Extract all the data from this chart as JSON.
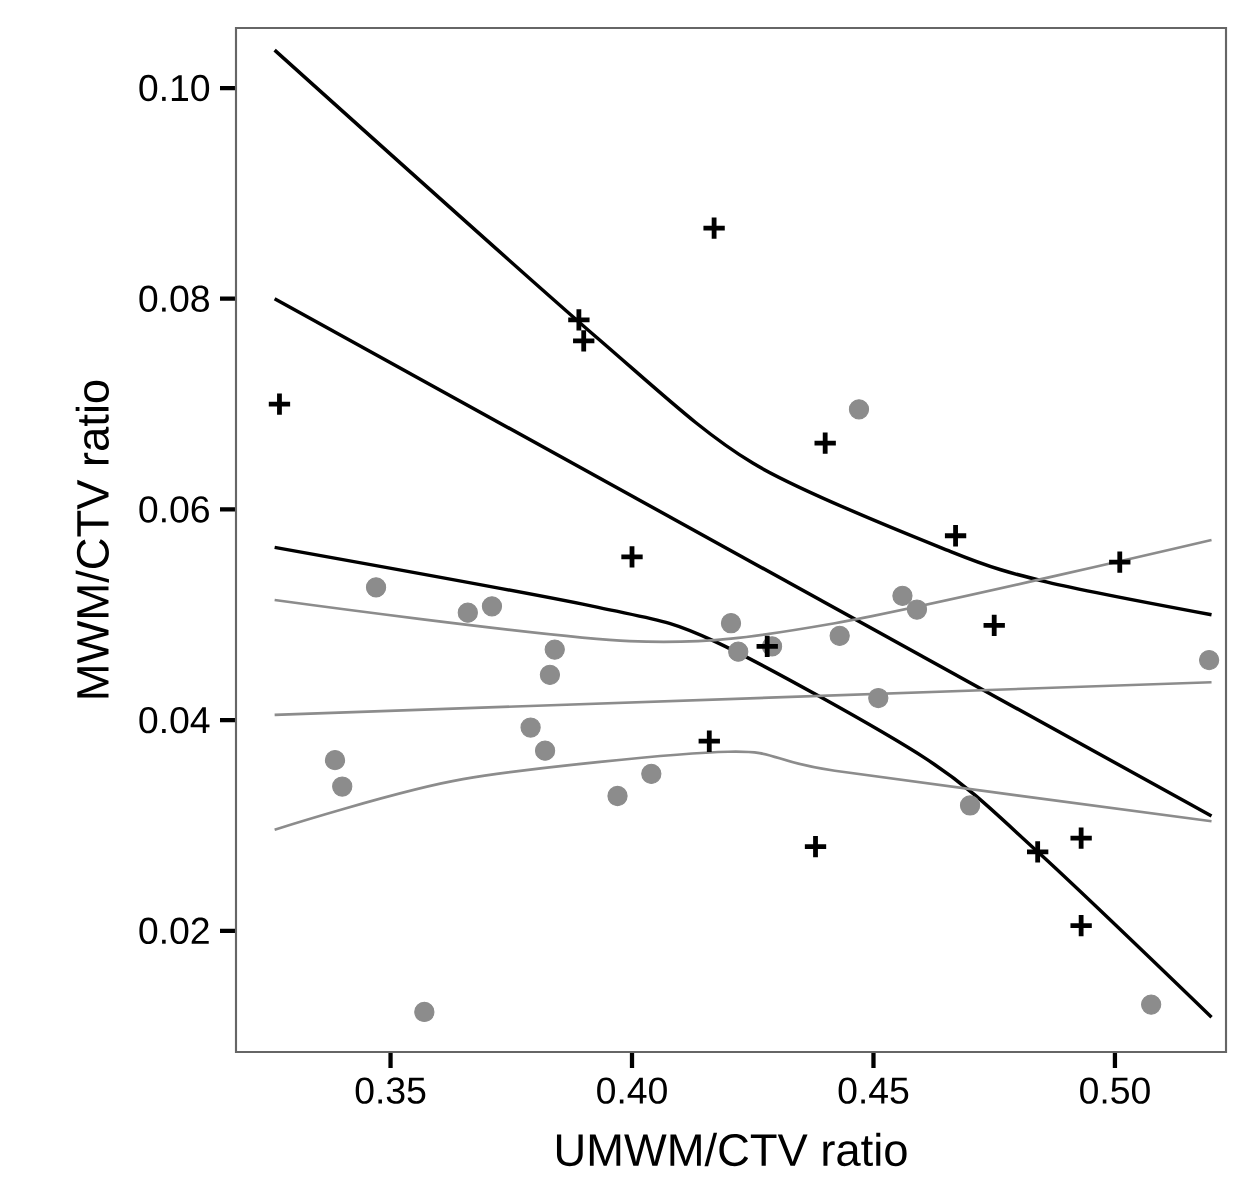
{
  "chart_data": {
    "type": "scatter",
    "xlabel": "UMWM/CTV ratio",
    "ylabel": "MWM/CTV ratio",
    "xlim": [
      0.318,
      0.523
    ],
    "ylim": [
      0.0085,
      0.1057
    ],
    "xticks": [
      0.35,
      {
        "value": 0.4,
        "label": "0.40"
      },
      0.45,
      {
        "value": 0.5,
        "label": "0.50"
      }
    ],
    "yticks": [
      0.02,
      0.04,
      0.06,
      0.08,
      {
        "value": 0.1,
        "label": "0.10"
      }
    ],
    "series": [
      {
        "marker": "cross",
        "color": "#000000",
        "x": [
          0.327,
          0.389,
          0.39,
          0.4,
          0.417,
          0.44,
          0.467,
          0.501,
          0.475,
          0.428,
          0.416,
          0.438,
          0.484,
          0.493,
          0.493
        ],
        "values": [
          0.07,
          0.078,
          0.076,
          0.0555,
          0.0867,
          0.0663,
          0.0575,
          0.055,
          0.049,
          0.047,
          0.038,
          0.028,
          0.0275,
          0.0288,
          0.0205
        ]
      },
      {
        "marker": "circle",
        "color": "#8c8c8c",
        "x": [
          0.347,
          0.366,
          0.371,
          0.384,
          0.383,
          0.379,
          0.382,
          0.3385,
          0.34,
          0.397,
          0.357,
          0.404,
          0.4205,
          0.422,
          0.429,
          0.443,
          0.456,
          0.459,
          0.451,
          0.47,
          0.447,
          0.5195,
          0.5075
        ],
        "values": [
          0.0526,
          0.0502,
          0.0508,
          0.0467,
          0.0443,
          0.0393,
          0.0371,
          0.0362,
          0.0337,
          0.0328,
          0.0123,
          0.0349,
          0.0492,
          0.0465,
          0.047,
          0.048,
          0.0518,
          0.0505,
          0.0421,
          0.0319,
          0.0695,
          0.0457,
          0.013
        ]
      },
      {
        "type": "line",
        "marker": "none",
        "color": "#000000",
        "x": [
          0.326,
          0.52
        ],
        "values": [
          0.08,
          0.0309
        ]
      },
      {
        "type": "line",
        "marker": "none",
        "color": "#000000",
        "x": [
          0.326,
          0.393,
          0.425,
          0.466,
          0.486,
          0.52
        ],
        "values": [
          0.1036,
          0.0762,
          0.0644,
          0.056,
          0.0531,
          0.05
        ]
      },
      {
        "type": "line",
        "marker": "none",
        "color": "#000000",
        "x": [
          0.326,
          0.393,
          0.417,
          0.461,
          0.484,
          0.52
        ],
        "values": [
          0.0564,
          0.0507,
          0.0475,
          0.0363,
          0.0275,
          0.0118
        ]
      },
      {
        "type": "line",
        "marker": "none",
        "color": "#8c8c8c",
        "x": [
          0.326,
          0.52
        ],
        "values": [
          0.0405,
          0.0436
        ]
      },
      {
        "type": "line",
        "marker": "none",
        "color": "#8c8c8c",
        "x": [
          0.326,
          0.3995,
          0.442,
          0.52
        ],
        "values": [
          0.0514,
          0.0475,
          0.0492,
          0.0571
        ]
      },
      {
        "type": "line",
        "marker": "none",
        "color": "#8c8c8c",
        "x": [
          0.326,
          0.365,
          0.42,
          0.442,
          0.52
        ],
        "values": [
          0.0296,
          0.0344,
          0.037,
          0.0352,
          0.0304
        ]
      }
    ]
  }
}
